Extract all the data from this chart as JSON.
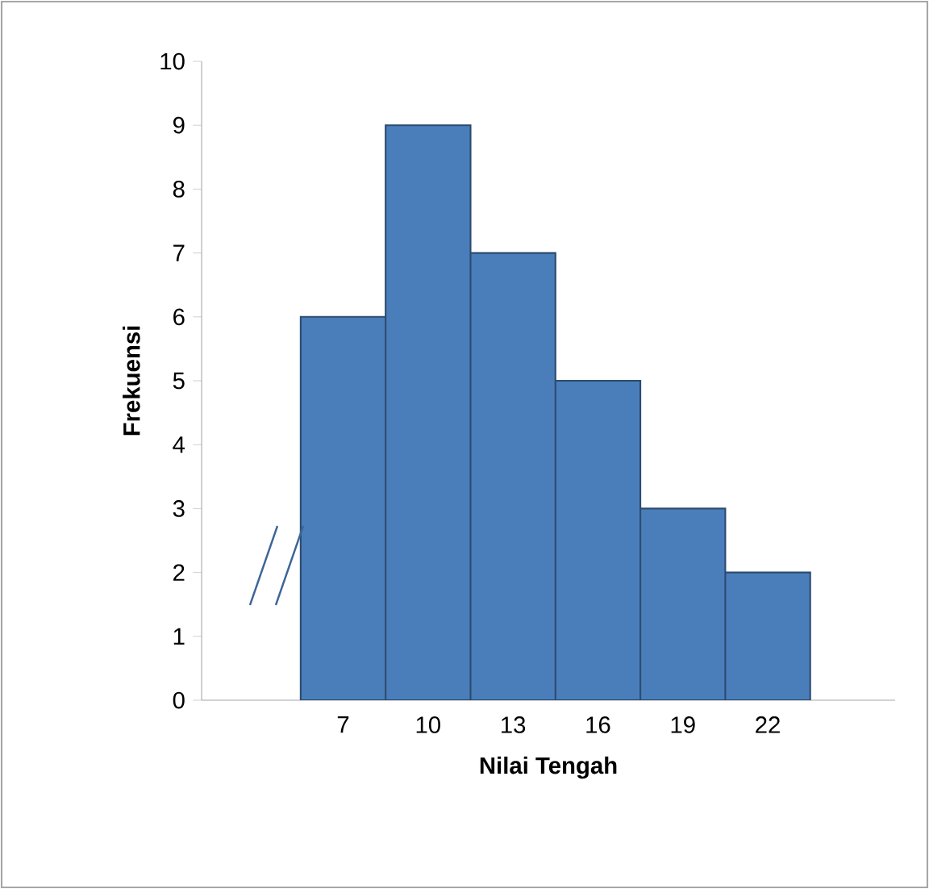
{
  "chart_data": {
    "type": "histogram",
    "xlabel": "Nilai Tengah",
    "ylabel": "Frekuensi",
    "bins": [
      5.5,
      8.5,
      11.5,
      14.5,
      17.5,
      20.5,
      23.5
    ],
    "values": [
      6,
      9,
      7,
      5,
      3,
      2
    ],
    "color": "#4a7ebb",
    "xlim": [
      2,
      26.5
    ],
    "xticks": [
      7,
      10,
      13,
      16,
      19,
      22
    ],
    "ylim": [
      0,
      10
    ],
    "yticks": [
      0,
      1,
      2,
      3,
      4,
      5,
      6,
      7,
      8,
      9,
      10
    ],
    "grid": false
  }
}
